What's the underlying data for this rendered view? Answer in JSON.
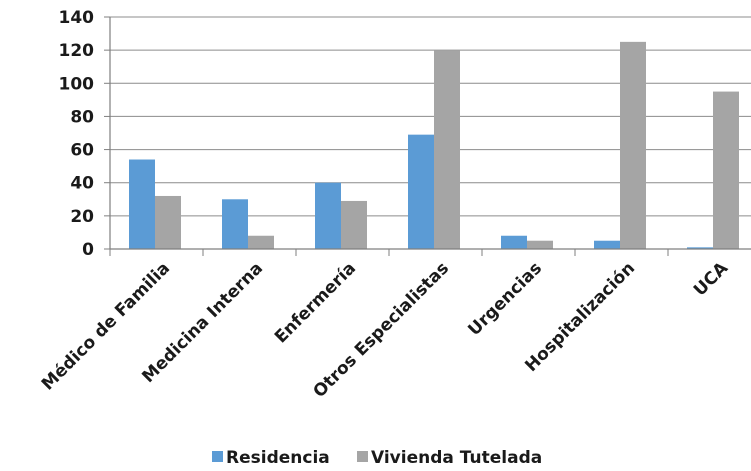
{
  "chart_data": {
    "type": "bar",
    "categories": [
      "Médico de Familia",
      "Medicina Interna",
      "Enfermería",
      "Otros Especialistas",
      "Urgencias",
      "Hospitalización",
      "UCA"
    ],
    "series": [
      {
        "name": "Residencia",
        "values": [
          54,
          30,
          40,
          69,
          8,
          5,
          1
        ],
        "color": "#5B9BD5"
      },
      {
        "name": "Vivienda Tutelada",
        "values": [
          32,
          8,
          29,
          120,
          5,
          125,
          95
        ],
        "color": "#A5A5A5"
      }
    ],
    "y_ticks": [
      "0",
      "20",
      "40",
      "60",
      "80",
      "100",
      "120",
      "140"
    ],
    "ylim": [
      0,
      140
    ],
    "grid": true,
    "legend_position": "bottom"
  }
}
